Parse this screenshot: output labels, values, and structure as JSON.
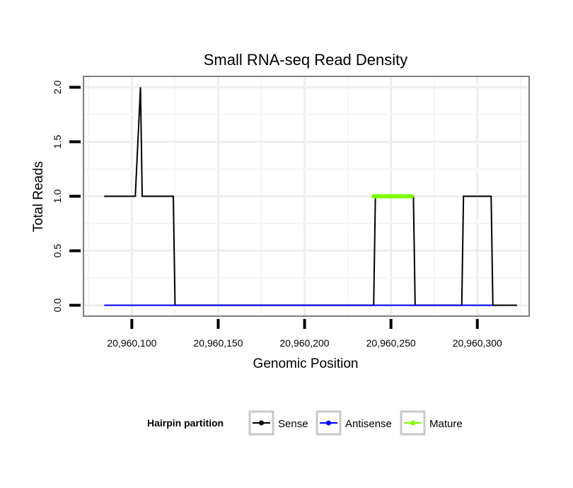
{
  "chart_data": {
    "type": "line",
    "title": "Small RNA-seq Read Density",
    "xlabel": "Genomic Position",
    "ylabel": "Total Reads",
    "xlim": [
      20960072,
      20960330
    ],
    "ylim": [
      -0.1,
      2.1
    ],
    "x_ticks": [
      20960100,
      20960150,
      20960200,
      20960250,
      20960300
    ],
    "x_tick_labels": [
      "20,960,100",
      "20,960,150",
      "20,960,200",
      "20,960,250",
      "20,960,300"
    ],
    "y_ticks": [
      0.0,
      0.5,
      1.0,
      1.5,
      2.0
    ],
    "y_tick_labels": [
      "0.0",
      "0.5",
      "1.0",
      "1.5",
      "2.0"
    ],
    "grid": true,
    "legend": {
      "title": "Hairpin partition",
      "position": "bottom",
      "entries": [
        "Sense",
        "Antisense",
        "Mature"
      ]
    },
    "series": [
      {
        "name": "Sense",
        "color": "#000000",
        "x": [
          20960084,
          20960102,
          20960105,
          20960106,
          20960124,
          20960125,
          20960240,
          20960241,
          20960263,
          20960264,
          20960291,
          20960292,
          20960308,
          20960309,
          20960323
        ],
        "y": [
          1,
          1,
          2,
          1,
          1,
          0,
          0,
          1,
          1,
          0,
          0,
          1,
          1,
          0,
          0
        ]
      },
      {
        "name": "Antisense",
        "color": "#0000ff",
        "x": [
          20960084,
          20960309
        ],
        "y": [
          0,
          0
        ]
      },
      {
        "name": "Mature",
        "color": "#7fff00",
        "x": [
          20960240,
          20960262
        ],
        "y": [
          1,
          1
        ]
      }
    ]
  }
}
